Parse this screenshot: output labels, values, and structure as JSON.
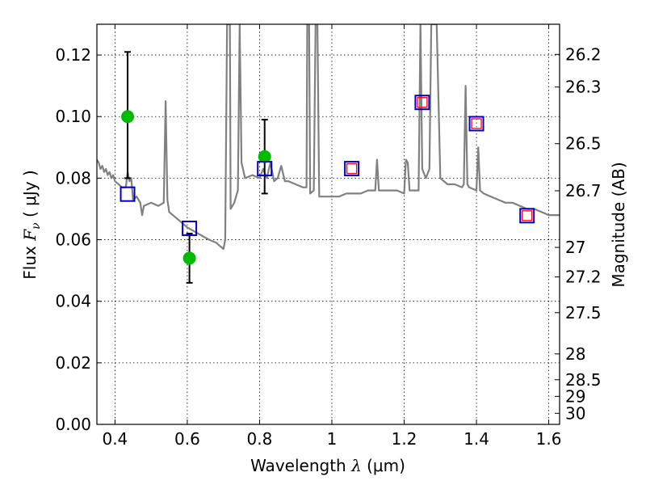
{
  "chart_data": {
    "type": "scatter",
    "xlabel": "Wavelength",
    "xlabel_symbol": "λ",
    "xlabel_unit": "(μm)",
    "ylabel": "Flux",
    "ylabel_symbol": "F",
    "ylabel_symbol_sub": "ν",
    "ylabel_unit": "( μJy )",
    "y2label": "Magnitude (AB)",
    "xlim": [
      0.35,
      1.63
    ],
    "ylim": [
      0.0,
      0.13
    ],
    "grid": true,
    "x_ticks": [
      0.4,
      0.6,
      0.8,
      1.0,
      1.2,
      1.4,
      1.6
    ],
    "x_tick_labels": [
      "0.4",
      "0.6",
      "0.8",
      "1",
      "1.2",
      "1.4",
      "1.6"
    ],
    "y_ticks": [
      0.0,
      0.02,
      0.04,
      0.06,
      0.08,
      0.1,
      0.12
    ],
    "y_tick_labels": [
      "0.00",
      "0.02",
      "0.04",
      "0.06",
      "0.08",
      "0.10",
      "0.12"
    ],
    "mag_ticks": [
      {
        "label": "26.2",
        "flux": 0.1202
      },
      {
        "label": "26.3",
        "flux": 0.1096
      },
      {
        "label": "26.5",
        "flux": 0.0912
      },
      {
        "label": "26.7",
        "flux": 0.0759
      },
      {
        "label": "27",
        "flux": 0.0575
      },
      {
        "label": "27.2",
        "flux": 0.0479
      },
      {
        "label": "27.5",
        "flux": 0.0363
      },
      {
        "label": "28",
        "flux": 0.0229
      },
      {
        "label": "28.5",
        "flux": 0.0145
      },
      {
        "label": "29",
        "flux": 0.0091
      },
      {
        "label": "30",
        "flux": 0.0036
      }
    ],
    "series": [
      {
        "kind": "spectrum",
        "color": "#808080",
        "points": [
          [
            0.35,
            0.086
          ],
          [
            0.355,
            0.085
          ],
          [
            0.36,
            0.083
          ],
          [
            0.365,
            0.084
          ],
          [
            0.37,
            0.082
          ],
          [
            0.375,
            0.083
          ],
          [
            0.38,
            0.081
          ],
          [
            0.385,
            0.082
          ],
          [
            0.39,
            0.08
          ],
          [
            0.395,
            0.081
          ],
          [
            0.4,
            0.079
          ],
          [
            0.41,
            0.078
          ],
          [
            0.42,
            0.077
          ],
          [
            0.43,
            0.077
          ],
          [
            0.435,
            0.082
          ],
          [
            0.44,
            0.079
          ],
          [
            0.445,
            0.08
          ],
          [
            0.45,
            0.073
          ],
          [
            0.46,
            0.074
          ],
          [
            0.47,
            0.072
          ],
          [
            0.475,
            0.068
          ],
          [
            0.48,
            0.071
          ],
          [
            0.5,
            0.072
          ],
          [
            0.52,
            0.071
          ],
          [
            0.535,
            0.072
          ],
          [
            0.54,
            0.105
          ],
          [
            0.545,
            0.073
          ],
          [
            0.55,
            0.069
          ],
          [
            0.58,
            0.066
          ],
          [
            0.6,
            0.064
          ],
          [
            0.63,
            0.062
          ],
          [
            0.66,
            0.06
          ],
          [
            0.68,
            0.059
          ],
          [
            0.7,
            0.057
          ],
          [
            0.705,
            0.06
          ],
          [
            0.71,
            0.13
          ],
          [
            0.718,
            0.13
          ],
          [
            0.72,
            0.07
          ],
          [
            0.73,
            0.072
          ],
          [
            0.74,
            0.076
          ],
          [
            0.745,
            0.13
          ],
          [
            0.75,
            0.085
          ],
          [
            0.76,
            0.08
          ],
          [
            0.78,
            0.081
          ],
          [
            0.8,
            0.08
          ],
          [
            0.81,
            0.083
          ],
          [
            0.82,
            0.08
          ],
          [
            0.83,
            0.085
          ],
          [
            0.84,
            0.079
          ],
          [
            0.85,
            0.08
          ],
          [
            0.86,
            0.084
          ],
          [
            0.87,
            0.079
          ],
          [
            0.88,
            0.079
          ],
          [
            0.9,
            0.078
          ],
          [
            0.92,
            0.077
          ],
          [
            0.93,
            0.077
          ],
          [
            0.932,
            0.13
          ],
          [
            0.937,
            0.13
          ],
          [
            0.94,
            0.075
          ],
          [
            0.95,
            0.076
          ],
          [
            0.955,
            0.13
          ],
          [
            0.96,
            0.13
          ],
          [
            0.965,
            0.074
          ],
          [
            0.98,
            0.074
          ],
          [
            1.0,
            0.074
          ],
          [
            1.02,
            0.074
          ],
          [
            1.04,
            0.075
          ],
          [
            1.06,
            0.075
          ],
          [
            1.08,
            0.075
          ],
          [
            1.1,
            0.076
          ],
          [
            1.12,
            0.076
          ],
          [
            1.125,
            0.086
          ],
          [
            1.13,
            0.076
          ],
          [
            1.15,
            0.076
          ],
          [
            1.18,
            0.076
          ],
          [
            1.2,
            0.075
          ],
          [
            1.205,
            0.086
          ],
          [
            1.21,
            0.085
          ],
          [
            1.215,
            0.076
          ],
          [
            1.24,
            0.076
          ],
          [
            1.245,
            0.13
          ],
          [
            1.25,
            0.083
          ],
          [
            1.26,
            0.08
          ],
          [
            1.27,
            0.083
          ],
          [
            1.275,
            0.13
          ],
          [
            1.28,
            0.13
          ],
          [
            1.29,
            0.13
          ],
          [
            1.3,
            0.08
          ],
          [
            1.32,
            0.078
          ],
          [
            1.34,
            0.078
          ],
          [
            1.36,
            0.077
          ],
          [
            1.365,
            0.078
          ],
          [
            1.37,
            0.11
          ],
          [
            1.375,
            0.078
          ],
          [
            1.38,
            0.077
          ],
          [
            1.4,
            0.076
          ],
          [
            1.405,
            0.09
          ],
          [
            1.41,
            0.076
          ],
          [
            1.42,
            0.075
          ],
          [
            1.44,
            0.074
          ],
          [
            1.46,
            0.073
          ],
          [
            1.48,
            0.072
          ],
          [
            1.5,
            0.072
          ],
          [
            1.52,
            0.071
          ],
          [
            1.54,
            0.07
          ],
          [
            1.56,
            0.07
          ],
          [
            1.58,
            0.069
          ],
          [
            1.6,
            0.068
          ],
          [
            1.62,
            0.068
          ],
          [
            1.63,
            0.068
          ]
        ]
      },
      {
        "kind": "observed",
        "color": "#00bb00",
        "marker": "circle",
        "points": [
          {
            "x": 0.435,
            "y": 0.1,
            "yerr_low": 0.02,
            "yerr_high": 0.021
          },
          {
            "x": 0.606,
            "y": 0.054,
            "yerr_low": 0.008,
            "yerr_high": 0.008
          },
          {
            "x": 0.814,
            "y": 0.087,
            "yerr_low": 0.012,
            "yerr_high": 0.012
          }
        ]
      },
      {
        "kind": "model-photometry",
        "color": "#0000cc",
        "marker": "open-square",
        "points": [
          {
            "x": 0.435,
            "y": 0.0748
          },
          {
            "x": 0.606,
            "y": 0.0637
          },
          {
            "x": 0.814,
            "y": 0.0831
          },
          {
            "x": 1.055,
            "y": 0.0831
          },
          {
            "x": 1.25,
            "y": 0.1046
          },
          {
            "x": 1.4,
            "y": 0.0977
          },
          {
            "x": 1.54,
            "y": 0.0678
          }
        ]
      },
      {
        "kind": "model-photometry-ir",
        "color": "#ff0000",
        "marker": "open-square-small",
        "points": [
          {
            "x": 1.055,
            "y": 0.0831
          },
          {
            "x": 1.25,
            "y": 0.1046
          },
          {
            "x": 1.4,
            "y": 0.0977
          },
          {
            "x": 1.54,
            "y": 0.0678
          }
        ]
      }
    ]
  }
}
